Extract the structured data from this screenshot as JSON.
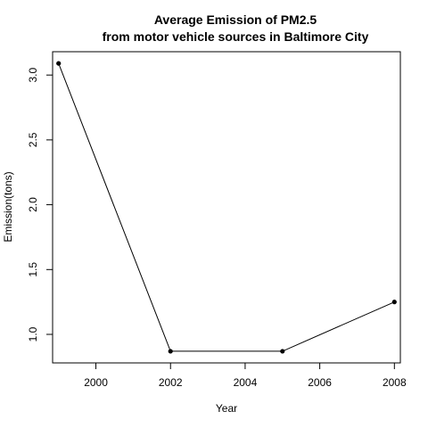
{
  "chart_data": {
    "type": "line",
    "title": [
      "Average Emission of PM2.5",
      "from motor vehicle sources in Baltimore City"
    ],
    "xlabel": "Year",
    "ylabel": "Emission(tons)",
    "x": [
      1999,
      2002,
      2005,
      2008
    ],
    "series": [
      {
        "values": [
          3.09,
          0.87,
          0.87,
          1.25
        ]
      }
    ],
    "xlim": [
      1998.84,
      2008.16
    ],
    "ylim": [
      0.78,
      3.18
    ],
    "xticks": [
      2000,
      2002,
      2004,
      2006,
      2008
    ],
    "yticks": [
      1.0,
      1.5,
      2.0,
      2.5,
      3.0
    ],
    "ytick_labels": [
      "1.0",
      "1.5",
      "2.0",
      "2.5",
      "3.0"
    ],
    "grid": false,
    "markers": true
  }
}
